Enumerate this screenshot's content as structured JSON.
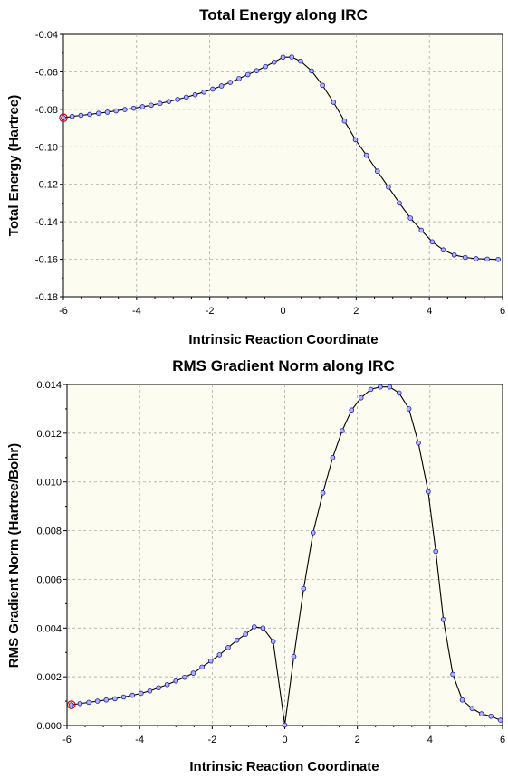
{
  "chart_data": [
    {
      "type": "line",
      "title": "Total Energy along IRC",
      "xlabel": "Intrinsic Reaction Coordinate",
      "ylabel": "Total Energy (Hartree)",
      "xlim": [
        -6,
        6
      ],
      "ylim": [
        -0.18,
        -0.04
      ],
      "xticks": [
        -6,
        -4,
        -2,
        0,
        2,
        4,
        6
      ],
      "yticks": [
        -0.04,
        -0.06,
        -0.08,
        -0.1,
        -0.12,
        -0.14,
        -0.16,
        -0.18
      ],
      "ytick_labels": [
        "-0.04",
        "-0.06",
        "-0.08",
        "-0.10",
        "-0.12",
        "-0.14",
        "-0.16",
        "-0.18"
      ],
      "grid": true,
      "highlighted_point_index": 0,
      "colors": {
        "line": "#000000",
        "marker_fill": "#aeb3ff",
        "marker_edge": "#1a1aa0",
        "highlight": "#d00000",
        "plot_bg": "#fcfcf0"
      },
      "series": [
        {
          "x": [
            -6.0,
            -5.76,
            -5.52,
            -5.28,
            -5.04,
            -4.8,
            -4.56,
            -4.32,
            -4.08,
            -3.84,
            -3.6,
            -3.36,
            -3.12,
            -2.88,
            -2.64,
            -2.4,
            -2.16,
            -1.92,
            -1.68,
            -1.44,
            -1.2,
            -0.96,
            -0.72,
            -0.48,
            -0.24,
            0.0,
            0.24,
            0.48,
            0.78,
            1.08,
            1.38,
            1.68,
            1.98,
            2.28,
            2.58,
            2.88,
            3.18,
            3.48,
            3.78,
            4.08,
            4.38,
            4.68,
            4.98,
            5.28,
            5.58,
            5.88
          ],
          "y": [
            -0.0845,
            -0.0838,
            -0.0832,
            -0.0827,
            -0.0821,
            -0.0815,
            -0.0808,
            -0.0801,
            -0.0794,
            -0.0786,
            -0.0778,
            -0.0768,
            -0.0758,
            -0.0747,
            -0.0735,
            -0.0722,
            -0.0708,
            -0.0692,
            -0.0675,
            -0.0656,
            -0.0636,
            -0.0615,
            -0.0594,
            -0.0572,
            -0.0548,
            -0.0522,
            -0.0521,
            -0.0543,
            -0.0595,
            -0.0672,
            -0.0762,
            -0.0862,
            -0.0962,
            -0.1045,
            -0.113,
            -0.1215,
            -0.13,
            -0.138,
            -0.1445,
            -0.1507,
            -0.155,
            -0.1577,
            -0.159,
            -0.1597,
            -0.1599,
            -0.1601
          ]
        }
      ]
    },
    {
      "type": "line",
      "title": "RMS Gradient Norm along IRC",
      "xlabel": "Intrinsic Reaction Coordinate",
      "ylabel": "RMS Gradient Norm (Hartree/Bohr)",
      "xlim": [
        -6,
        6
      ],
      "ylim": [
        0,
        0.014
      ],
      "xticks": [
        -6,
        -4,
        -2,
        0,
        2,
        4,
        6
      ],
      "yticks": [
        0,
        0.002,
        0.004,
        0.006,
        0.008,
        0.01,
        0.012,
        0.014
      ],
      "ytick_labels": [
        "0.000",
        "0.002",
        "0.004",
        "0.006",
        "0.008",
        "0.010",
        "0.012",
        "0.014"
      ],
      "grid": true,
      "highlighted_point_index": 0,
      "colors": {
        "line": "#000000",
        "marker_fill": "#aeb3ff",
        "marker_edge": "#1a1aa0",
        "highlight": "#d00000",
        "plot_bg": "#fcfcf0"
      },
      "series": [
        {
          "x": [
            -5.88,
            -5.64,
            -5.4,
            -5.16,
            -4.92,
            -4.68,
            -4.44,
            -4.2,
            -3.96,
            -3.72,
            -3.48,
            -3.24,
            -3.0,
            -2.76,
            -2.52,
            -2.28,
            -2.04,
            -1.8,
            -1.56,
            -1.32,
            -1.08,
            -0.84,
            -0.6,
            -0.32,
            0.0,
            0.25,
            0.52,
            0.78,
            1.05,
            1.32,
            1.58,
            1.84,
            2.1,
            2.37,
            2.63,
            2.89,
            3.15,
            3.42,
            3.68,
            3.95,
            4.16,
            4.37,
            4.63,
            4.89,
            5.16,
            5.42,
            5.68,
            5.94
          ],
          "y": [
            0.00085,
            0.0009,
            0.00095,
            0.001,
            0.00105,
            0.0011,
            0.00117,
            0.00124,
            0.00132,
            0.00142,
            0.00155,
            0.00168,
            0.00183,
            0.00198,
            0.00215,
            0.0024,
            0.00265,
            0.0029,
            0.0032,
            0.0035,
            0.00375,
            0.00405,
            0.004,
            0.00345,
            2e-05,
            0.00283,
            0.00562,
            0.00792,
            0.00955,
            0.011,
            0.0121,
            0.01295,
            0.01345,
            0.0138,
            0.0139,
            0.0139,
            0.01365,
            0.013,
            0.0116,
            0.0096,
            0.00715,
            0.00435,
            0.0021,
            0.00105,
            0.0007,
            0.00048,
            0.00038,
            0.00022
          ]
        }
      ]
    }
  ]
}
